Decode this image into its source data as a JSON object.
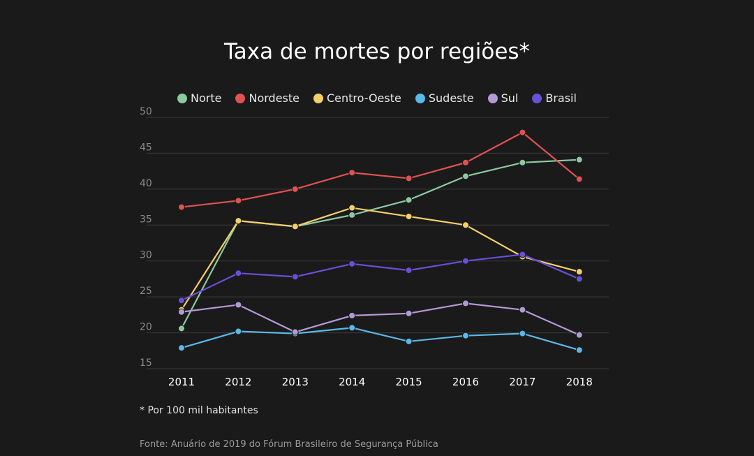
{
  "chart_data": {
    "type": "line",
    "title": "Taxa de mortes por regiões*",
    "xlabel": "",
    "ylabel": "",
    "x": [
      2011,
      2012,
      2013,
      2014,
      2015,
      2016,
      2017,
      2018
    ],
    "x_tick_labels": [
      "2011",
      "2012",
      "2013",
      "2014",
      "2015",
      "2016",
      "2017",
      "2018"
    ],
    "y_ticks": [
      15,
      20,
      25,
      30,
      35,
      40,
      45,
      50
    ],
    "ylim": [
      15,
      50
    ],
    "grid": "horizontal",
    "legend_placement": "top-center",
    "series": [
      {
        "name": "Norte",
        "color": "#8cc9a0",
        "values": [
          20.6,
          35.6,
          34.8,
          36.4,
          38.5,
          41.8,
          43.7,
          44.1
        ]
      },
      {
        "name": "Nordeste",
        "color": "#e05252",
        "values": [
          37.5,
          38.4,
          40.0,
          42.3,
          41.5,
          43.7,
          47.9,
          41.4
        ]
      },
      {
        "name": "Centro-Oeste",
        "color": "#f5cf6a",
        "values": [
          23.2,
          35.6,
          34.8,
          37.4,
          36.2,
          35.0,
          30.6,
          28.5
        ]
      },
      {
        "name": "Sudeste",
        "color": "#5bb8e8",
        "values": [
          17.9,
          20.2,
          19.9,
          20.7,
          18.8,
          19.6,
          19.9,
          17.6
        ]
      },
      {
        "name": "Sul",
        "color": "#b39ad6",
        "values": [
          22.9,
          23.9,
          20.1,
          22.4,
          22.7,
          24.1,
          23.2,
          19.7
        ]
      },
      {
        "name": "Brasil",
        "color": "#6a4fd8",
        "values": [
          24.5,
          28.3,
          27.8,
          29.6,
          28.7,
          30.0,
          30.9,
          27.5
        ]
      }
    ]
  },
  "footnote": "* Por 100 mil habitantes",
  "source": "Fonte: Anuário de 2019 do Fórum Brasileiro de Segurança Pública"
}
